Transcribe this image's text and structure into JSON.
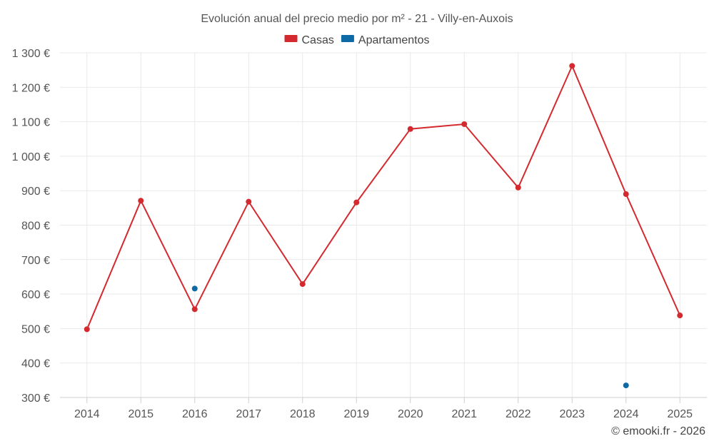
{
  "chart_data": {
    "type": "line",
    "title": "Evolución anual del precio medio por m² - 21 - Villy-en-Auxois",
    "categories": [
      "2014",
      "2015",
      "2016",
      "2017",
      "2018",
      "2019",
      "2020",
      "2021",
      "2022",
      "2023",
      "2024",
      "2025"
    ],
    "y_ticks": [
      "300 €",
      "400 €",
      "500 €",
      "600 €",
      "700 €",
      "800 €",
      "900 €",
      "1 000 €",
      "1 100 €",
      "1 200 €",
      "1 300 €"
    ],
    "ylim": [
      300,
      1300
    ],
    "legend_position": "top-center",
    "series": [
      {
        "name": "Casas",
        "color": "#d42a2f",
        "values": [
          498,
          871,
          556,
          868,
          629,
          866,
          1079,
          1093,
          909,
          1262,
          890,
          538
        ]
      },
      {
        "name": "Apartamentos",
        "color": "#0e6aa6",
        "values": [
          null,
          null,
          616,
          null,
          null,
          null,
          null,
          null,
          null,
          null,
          335,
          null
        ]
      }
    ],
    "credit": "© emooki.fr - 2026"
  }
}
